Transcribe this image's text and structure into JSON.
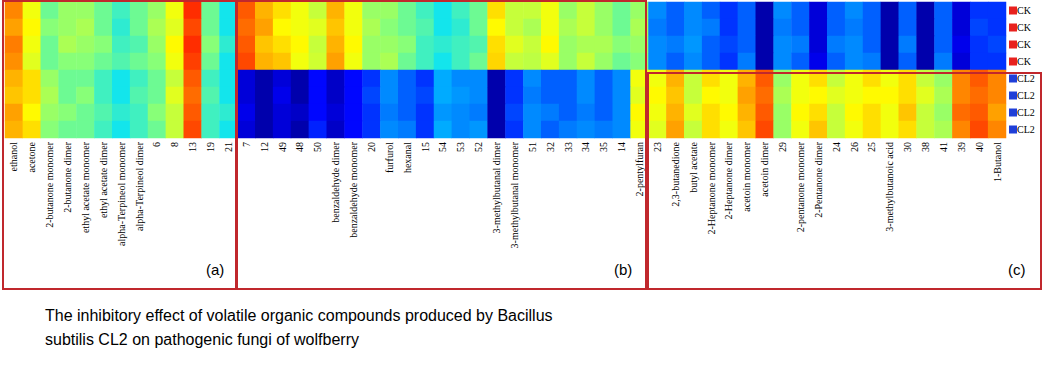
{
  "chart_data": {
    "type": "heatmap",
    "title": "The inhibitory effect of volatile organic compounds produced by Bacillus subtilis CL2 on pathogenic fungi of wolfberry",
    "categories": [
      "ethanol",
      "acetone",
      "2-butanone monomer",
      "2-butanone dimer",
      "ethyl acetate monomer",
      "ethyl acetate dimer",
      "alpha-Terpineol monomer",
      "alpha-Terpineol dimer",
      "6",
      "8",
      "13",
      "19",
      "21",
      "7",
      "12",
      "49",
      "48",
      "50",
      "benzaldehyde dimer",
      "benzaldehyde monomer",
      "20",
      "furfurol",
      "hexanal",
      "15",
      "54",
      "53",
      "52",
      "3-methylbutanal dimer",
      "3-methylbutanal monomer",
      "51",
      "32",
      "33",
      "34",
      "35",
      "14",
      "2-pentylfuran",
      "23",
      "2,3-butanedione",
      "butyl acetate",
      "2-Heptanone monomer",
      "2-Heptanone dimer",
      "acetoin monomer",
      "acetoin dimer",
      "29",
      "2-pentanone monomer",
      "2-Pentanone dimer",
      "24",
      "26",
      "25",
      "3-methylbutanoic acid",
      "30",
      "38",
      "41",
      "39",
      "40",
      "1-Butanol"
    ],
    "rows": [
      "CK",
      "CK",
      "CK",
      "CK",
      "CL2",
      "CL2",
      "CL2",
      "CL2"
    ],
    "groups": [
      {
        "name": "CK",
        "color": "#e8211e"
      },
      {
        "name": "CL2",
        "color": "#1f3fd8"
      }
    ],
    "cells": [
      [
        85,
        70,
        55,
        60,
        60,
        55,
        50,
        55,
        60,
        70,
        95,
        55,
        45,
        90,
        80,
        75,
        70,
        65,
        80,
        70,
        60,
        60,
        55,
        50,
        45,
        50,
        55,
        75,
        65,
        65,
        70,
        60,
        65,
        60,
        55,
        60,
        30,
        25,
        30,
        25,
        20,
        25,
        5,
        30,
        25,
        10,
        25,
        30,
        25,
        5,
        25,
        5,
        25,
        10,
        20,
        20
      ],
      [
        82,
        72,
        58,
        60,
        62,
        55,
        48,
        55,
        62,
        68,
        92,
        55,
        45,
        88,
        82,
        72,
        70,
        68,
        78,
        70,
        62,
        58,
        55,
        52,
        45,
        48,
        55,
        72,
        65,
        62,
        70,
        62,
        65,
        60,
        55,
        62,
        28,
        25,
        30,
        28,
        20,
        25,
        5,
        28,
        25,
        10,
        25,
        28,
        25,
        5,
        25,
        5,
        25,
        10,
        22,
        20
      ],
      [
        86,
        70,
        55,
        62,
        60,
        58,
        50,
        52,
        60,
        72,
        95,
        58,
        48,
        90,
        78,
        75,
        72,
        65,
        80,
        72,
        60,
        60,
        58,
        50,
        48,
        50,
        52,
        75,
        68,
        65,
        72,
        60,
        62,
        62,
        58,
        60,
        30,
        28,
        32,
        25,
        22,
        25,
        5,
        30,
        28,
        10,
        28,
        30,
        25,
        5,
        28,
        5,
        25,
        12,
        20,
        22
      ],
      [
        84,
        68,
        55,
        58,
        58,
        55,
        52,
        55,
        58,
        70,
        93,
        55,
        45,
        92,
        80,
        78,
        70,
        66,
        82,
        70,
        60,
        62,
        55,
        50,
        45,
        50,
        55,
        76,
        65,
        64,
        68,
        60,
        65,
        60,
        55,
        58,
        30,
        25,
        30,
        25,
        20,
        28,
        5,
        30,
        25,
        12,
        25,
        30,
        28,
        5,
        25,
        5,
        28,
        10,
        20,
        20
      ],
      [
        80,
        75,
        60,
        55,
        55,
        50,
        45,
        50,
        55,
        65,
        90,
        50,
        45,
        10,
        5,
        10,
        5,
        15,
        8,
        15,
        20,
        30,
        25,
        20,
        35,
        30,
        30,
        5,
        20,
        30,
        25,
        25,
        30,
        25,
        30,
        70,
        70,
        80,
        65,
        75,
        70,
        80,
        90,
        60,
        70,
        75,
        65,
        70,
        75,
        70,
        75,
        65,
        60,
        85,
        90,
        85
      ],
      [
        78,
        75,
        62,
        55,
        58,
        50,
        45,
        52,
        55,
        68,
        88,
        52,
        45,
        10,
        5,
        12,
        5,
        15,
        8,
        15,
        22,
        30,
        25,
        22,
        35,
        32,
        30,
        5,
        20,
        28,
        25,
        25,
        30,
        25,
        30,
        68,
        72,
        78,
        65,
        72,
        70,
        82,
        88,
        62,
        70,
        72,
        68,
        70,
        72,
        72,
        75,
        68,
        62,
        85,
        88,
        85
      ],
      [
        82,
        72,
        60,
        58,
        55,
        52,
        48,
        50,
        58,
        65,
        90,
        50,
        48,
        12,
        5,
        10,
        8,
        15,
        10,
        15,
        20,
        28,
        25,
        20,
        32,
        30,
        28,
        5,
        22,
        30,
        28,
        25,
        28,
        25,
        30,
        72,
        70,
        80,
        68,
        75,
        72,
        80,
        90,
        60,
        72,
        75,
        65,
        72,
        75,
        70,
        78,
        65,
        60,
        88,
        90,
        82
      ],
      [
        80,
        75,
        58,
        55,
        55,
        50,
        45,
        50,
        55,
        65,
        92,
        50,
        45,
        10,
        5,
        10,
        5,
        18,
        8,
        15,
        20,
        30,
        28,
        20,
        35,
        30,
        32,
        5,
        20,
        30,
        25,
        28,
        30,
        28,
        30,
        70,
        68,
        82,
        65,
        75,
        70,
        78,
        92,
        60,
        70,
        78,
        65,
        70,
        75,
        70,
        75,
        65,
        62,
        85,
        92,
        85
      ]
    ],
    "color_range": [
      0,
      100
    ],
    "panel_labels": [
      "(a)",
      "(b)",
      "(c)"
    ],
    "tick_labels": true,
    "grid": false
  }
}
